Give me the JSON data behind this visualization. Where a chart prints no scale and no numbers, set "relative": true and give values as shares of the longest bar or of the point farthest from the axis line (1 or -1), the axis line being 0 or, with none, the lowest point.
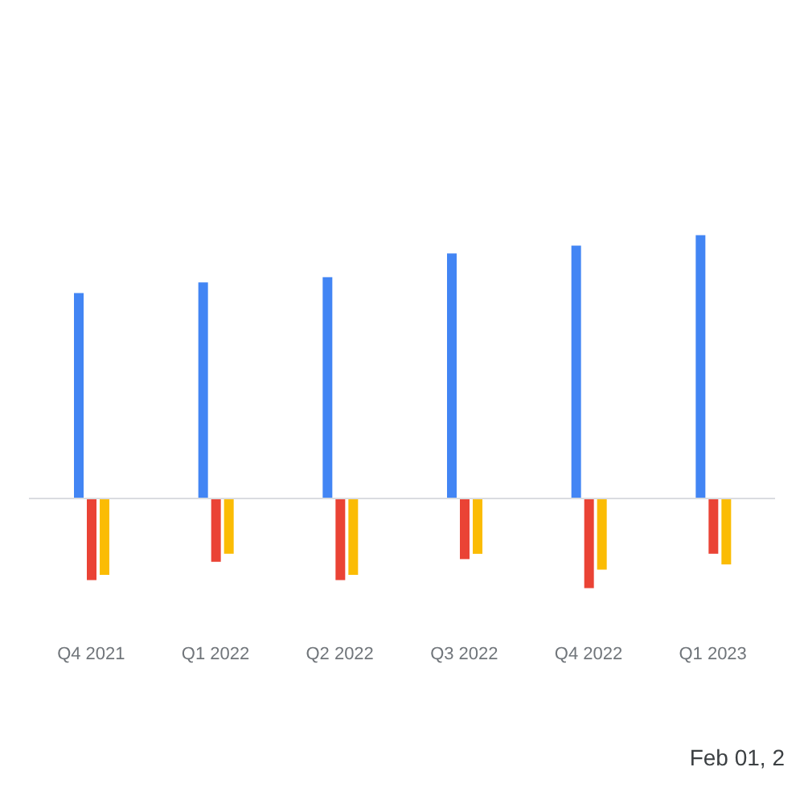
{
  "chart_data": {
    "type": "bar",
    "relative": true,
    "categories": [
      "Q4 2021",
      "Q1 2022",
      "Q2 2022",
      "Q3 2022",
      "Q4 2022",
      "Q1 2023"
    ],
    "series": [
      {
        "color": "#4285f4",
        "values": [
          0.78,
          0.82,
          0.84,
          0.93,
          0.96,
          1
        ]
      },
      {
        "color": "#ea4335",
        "values": [
          -0.31,
          -0.24,
          -0.31,
          -0.23,
          -0.34,
          -0.21
        ]
      },
      {
        "color": "#fbbc04",
        "values": [
          -0.29,
          -0.21,
          -0.29,
          -0.21,
          -0.27,
          -0.25
        ]
      }
    ],
    "annotations": [
      "Feb 01, 2"
    ]
  }
}
